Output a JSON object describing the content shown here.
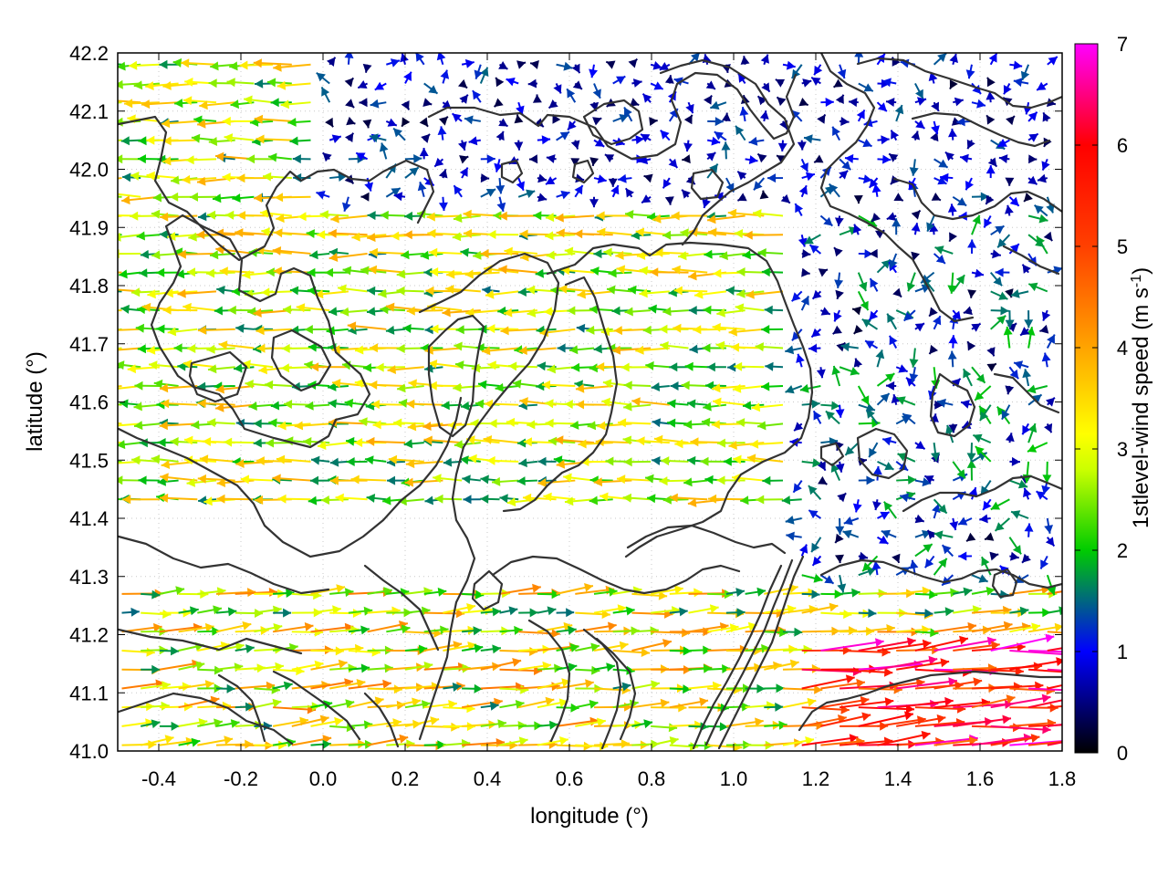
{
  "chart_data": {
    "type": "vector-field",
    "x": {
      "label": "longitude (°)",
      "range": [
        -0.5,
        1.8
      ],
      "ticks": [
        -0.4,
        -0.2,
        0.0,
        0.2,
        0.4,
        0.6,
        0.8,
        1.0,
        1.2,
        1.4,
        1.6,
        1.8
      ],
      "tick_labels": [
        "-0.4",
        "-0.2",
        "0.0",
        "0.2",
        "0.4",
        "0.6",
        "0.8",
        "1.0",
        "1.2",
        "1.4",
        "1.6",
        "1.8"
      ]
    },
    "y": {
      "label": "latitude (°)",
      "range": [
        41.0,
        42.2
      ],
      "ticks": [
        41.0,
        41.1,
        41.2,
        41.3,
        41.4,
        41.5,
        41.6,
        41.7,
        41.8,
        41.9,
        42.0,
        42.1,
        42.2
      ],
      "tick_labels": [
        "41.0",
        "41.1",
        "41.2",
        "41.3",
        "41.4",
        "41.5",
        "41.6",
        "41.7",
        "41.8",
        "41.9",
        "42.0",
        "42.1",
        "42.2"
      ]
    },
    "colorbar": {
      "label": "1stlevel-wind speed (m s-1)",
      "label_main": "1stlevel-wind speed (m s",
      "label_sup": "-1",
      "label_end": ")",
      "range": [
        0,
        7
      ],
      "ticks": [
        0,
        1,
        2,
        3,
        4,
        5,
        6,
        7
      ],
      "tick_labels": [
        "0",
        "1",
        "2",
        "3",
        "4",
        "5",
        "6",
        "7"
      ],
      "palette": [
        "#000000",
        "#0000ff",
        "#00cc00",
        "#ccff00",
        "#ffff00",
        "#ffa500",
        "#ff4000",
        "#ff0000",
        "#ff00ff"
      ]
    },
    "grid": true,
    "field_regions": [
      {
        "region": "west",
        "lon": [
          -0.5,
          0.45
        ],
        "lat": [
          41.4,
          42.2
        ],
        "direction": "westward",
        "speed_range": [
          1.5,
          4.0
        ]
      },
      {
        "region": "central",
        "lon": [
          0.45,
          1.15
        ],
        "lat": [
          41.4,
          41.95
        ],
        "direction": "westward",
        "speed_range": [
          1.5,
          4.0
        ]
      },
      {
        "region": "north-central",
        "lon": [
          0.0,
          1.8
        ],
        "lat": [
          41.95,
          42.2
        ],
        "direction": "variable",
        "speed_range": [
          0.2,
          1.5
        ]
      },
      {
        "region": "east",
        "lon": [
          1.15,
          1.8
        ],
        "lat": [
          41.3,
          41.95
        ],
        "direction": "variable",
        "speed_range": [
          0.2,
          2.0
        ]
      },
      {
        "region": "south",
        "lon": [
          -0.5,
          1.8
        ],
        "lat": [
          41.0,
          41.3
        ],
        "direction": "eastward",
        "speed_range": [
          1.5,
          4.5
        ]
      },
      {
        "region": "southeast-jet",
        "lon": [
          1.15,
          1.8
        ],
        "lat": [
          41.0,
          41.18
        ],
        "direction": "eastward",
        "speed_range": [
          4.5,
          7.0
        ]
      }
    ]
  }
}
